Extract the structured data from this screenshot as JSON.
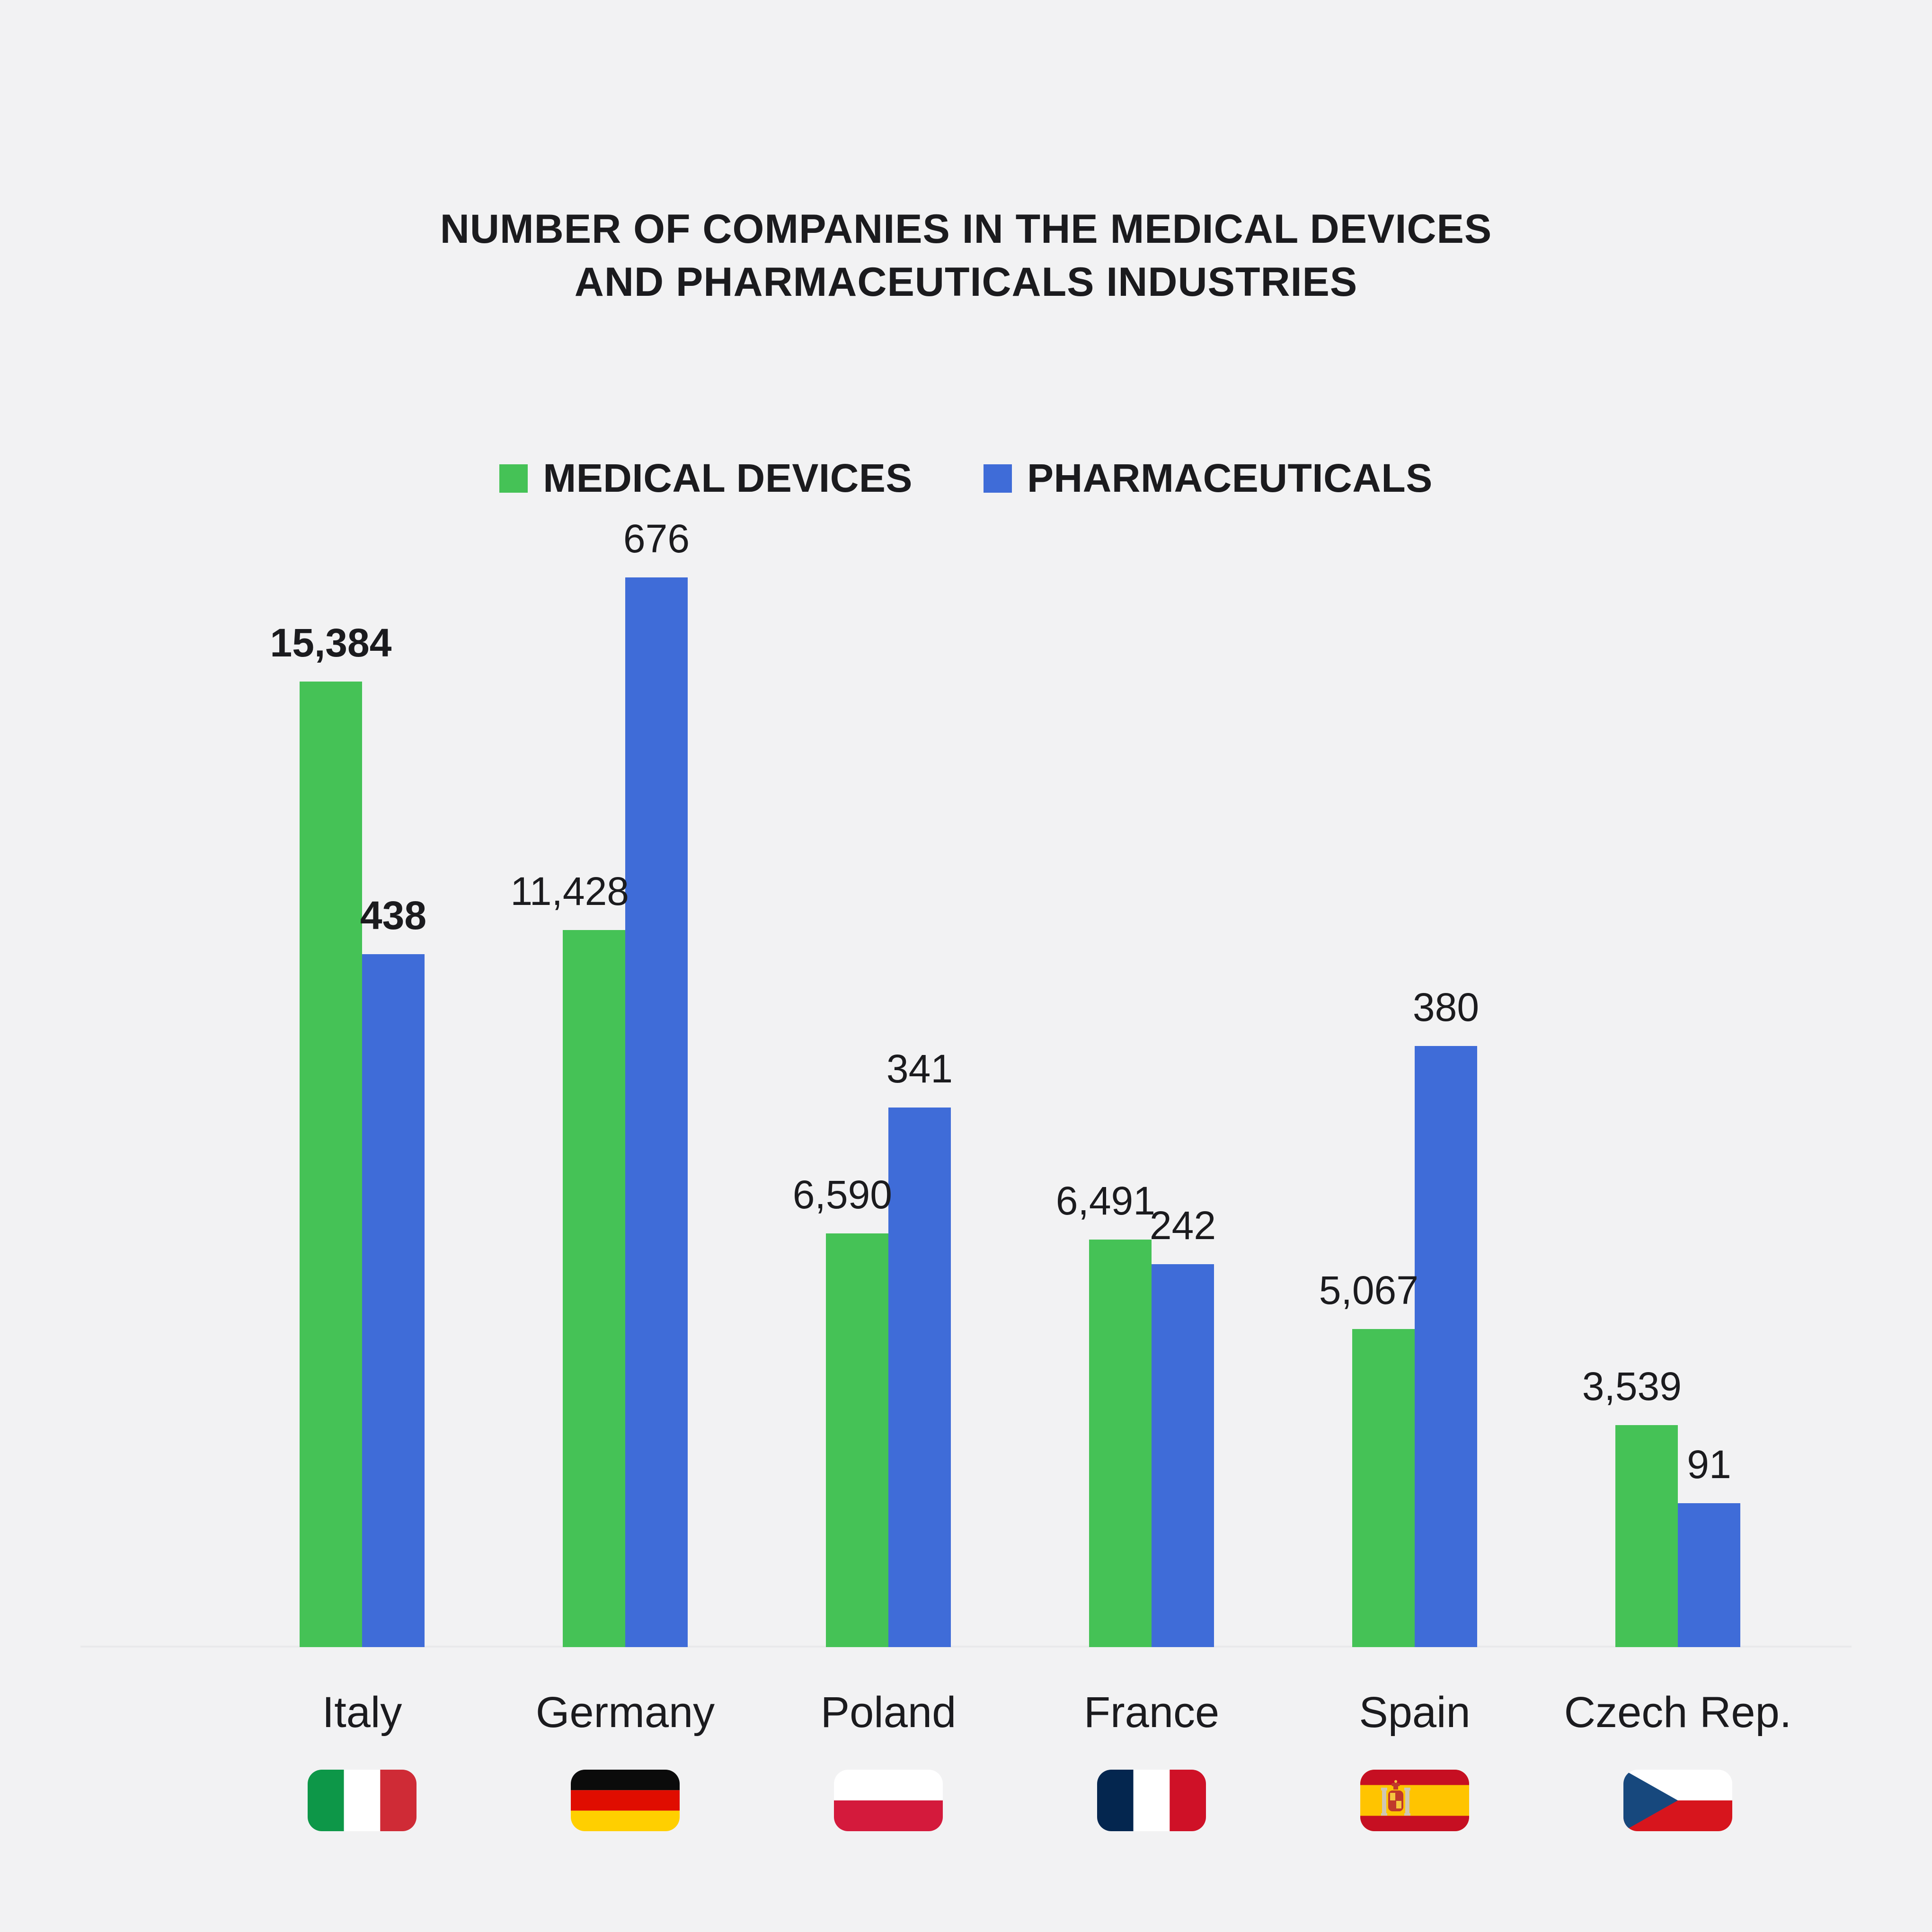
{
  "title": {
    "line1": "NUMBER OF COMPANIES IN THE MEDICAL DEVICES",
    "line2": "AND PHARMACEUTICALS INDUSTRIES"
  },
  "legend": {
    "items": [
      {
        "label": "MEDICAL DEVICES",
        "color": "#45c256"
      },
      {
        "label": "PHARMACEUTICALS",
        "color": "#3f6cd8"
      }
    ],
    "position": "top-center"
  },
  "chart_data": {
    "type": "bar",
    "title": "NUMBER OF COMPANIES IN THE MEDICAL DEVICES AND PHARMACEUTICALS INDUSTRIES",
    "categories": [
      "Italy",
      "Germany",
      "Poland",
      "France",
      "Spain",
      "Czech Rep."
    ],
    "series": [
      {
        "name": "MEDICAL DEVICES",
        "color": "#45c256",
        "values": [
          15384,
          11428,
          6590,
          6491,
          5067,
          3539
        ],
        "labels": [
          "15,384",
          "11,428",
          "6,590",
          "6,491",
          "5,067",
          "3,539"
        ]
      },
      {
        "name": "PHARMACEUTICALS",
        "color": "#3f6cd8",
        "values": [
          438,
          676,
          341,
          242,
          380,
          91
        ],
        "labels": [
          "438",
          "676",
          "341",
          "242",
          "380",
          "91"
        ]
      }
    ],
    "emphasized_category": "Italy",
    "flag_keys": [
      "italy",
      "germany",
      "poland",
      "france",
      "spain",
      "czech"
    ],
    "scaling_note": "each series is scaled independently; series max fills its own height",
    "legend_position": "top",
    "grid": false,
    "axes_hidden": true,
    "xlabel": "",
    "ylabel": ""
  },
  "flags": {
    "italy": {
      "name": "Italy",
      "layout": "vertical-tricolor",
      "colors": [
        "#0d9748",
        "#ffffff",
        "#cf2b36"
      ]
    },
    "germany": {
      "name": "Germany",
      "layout": "horizontal-tricolor",
      "colors": [
        "#0b0b0b",
        "#e00d00",
        "#ffcf00"
      ]
    },
    "poland": {
      "name": "Poland",
      "layout": "horizontal-bicolor",
      "colors": [
        "#ffffff",
        "#d41a3c"
      ]
    },
    "france": {
      "name": "France",
      "layout": "vertical-tricolor",
      "colors": [
        "#04264f",
        "#ffffff",
        "#cf1127"
      ]
    },
    "spain": {
      "name": "Spain",
      "layout": "horizontal-spain",
      "colors": [
        "#c60f22",
        "#ffc400",
        "#c60f22"
      ],
      "emblem": "coat-of-arms"
    },
    "czech": {
      "name": "Czech Republic",
      "layout": "bicolor-triangle",
      "colors": [
        "#ffffff",
        "#d7151d",
        "#17487d"
      ]
    }
  },
  "colors": {
    "background": "#f2f2f3",
    "baseline": "#e9e9eb",
    "text": "#1b1b1e"
  }
}
